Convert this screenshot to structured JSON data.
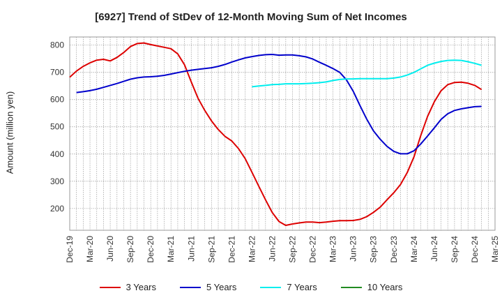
{
  "chart_data": {
    "type": "line",
    "title": "[6927]  Trend of StDev of 12-Month Moving Sum of Net Incomes",
    "xlabel": "",
    "ylabel": "Amount (million yen)",
    "x_ticks": [
      "Dec-19",
      "Mar-20",
      "Jun-20",
      "Sep-20",
      "Dec-20",
      "Mar-21",
      "Jun-21",
      "Sep-21",
      "Dec-21",
      "Mar-22",
      "Jun-22",
      "Sep-22",
      "Dec-22",
      "Mar-23",
      "Jun-23",
      "Sep-23",
      "Dec-23",
      "Mar-24",
      "Jun-24",
      "Sep-24",
      "Dec-24",
      "Mar-25"
    ],
    "ylim": [
      120,
      830
    ],
    "y_ticks": [
      200,
      300,
      400,
      500,
      600,
      700,
      800
    ],
    "grid": true,
    "legend_position": "bottom",
    "series": [
      {
        "name": "3 Years",
        "color": "#dd0000",
        "points": [
          [
            "2019-12",
            682
          ],
          [
            "2020-01",
            705
          ],
          [
            "2020-02",
            722
          ],
          [
            "2020-03",
            735
          ],
          [
            "2020-04",
            745
          ],
          [
            "2020-05",
            748
          ],
          [
            "2020-06",
            742
          ],
          [
            "2020-07",
            755
          ],
          [
            "2020-08",
            773
          ],
          [
            "2020-09",
            795
          ],
          [
            "2020-10",
            806
          ],
          [
            "2020-11",
            808
          ],
          [
            "2020-12",
            802
          ],
          [
            "2021-01",
            797
          ],
          [
            "2021-02",
            792
          ],
          [
            "2021-03",
            787
          ],
          [
            "2021-04",
            768
          ],
          [
            "2021-05",
            728
          ],
          [
            "2021-06",
            665
          ],
          [
            "2021-07",
            605
          ],
          [
            "2021-08",
            560
          ],
          [
            "2021-09",
            522
          ],
          [
            "2021-10",
            490
          ],
          [
            "2021-11",
            465
          ],
          [
            "2021-12",
            448
          ],
          [
            "2022-01",
            420
          ],
          [
            "2022-02",
            383
          ],
          [
            "2022-03",
            333
          ],
          [
            "2022-04",
            282
          ],
          [
            "2022-05",
            232
          ],
          [
            "2022-06",
            185
          ],
          [
            "2022-07",
            152
          ],
          [
            "2022-08",
            138
          ],
          [
            "2022-09",
            143
          ],
          [
            "2022-10",
            147
          ],
          [
            "2022-11",
            150
          ],
          [
            "2022-12",
            150
          ],
          [
            "2023-01",
            148
          ],
          [
            "2023-02",
            150
          ],
          [
            "2023-03",
            153
          ],
          [
            "2023-04",
            155
          ],
          [
            "2023-05",
            155
          ],
          [
            "2023-06",
            156
          ],
          [
            "2023-07",
            160
          ],
          [
            "2023-08",
            170
          ],
          [
            "2023-09",
            186
          ],
          [
            "2023-10",
            205
          ],
          [
            "2023-11",
            232
          ],
          [
            "2023-12",
            258
          ],
          [
            "2024-01",
            288
          ],
          [
            "2024-02",
            332
          ],
          [
            "2024-03",
            390
          ],
          [
            "2024-04",
            468
          ],
          [
            "2024-05",
            538
          ],
          [
            "2024-06",
            592
          ],
          [
            "2024-07",
            632
          ],
          [
            "2024-08",
            655
          ],
          [
            "2024-09",
            663
          ],
          [
            "2024-10",
            664
          ],
          [
            "2024-11",
            660
          ],
          [
            "2024-12",
            652
          ],
          [
            "2025-01",
            637
          ]
        ]
      },
      {
        "name": "5 Years",
        "color": "#0000cc",
        "points": [
          [
            "2020-01",
            626
          ],
          [
            "2020-02",
            629
          ],
          [
            "2020-03",
            633
          ],
          [
            "2020-04",
            638
          ],
          [
            "2020-05",
            645
          ],
          [
            "2020-06",
            652
          ],
          [
            "2020-07",
            659
          ],
          [
            "2020-08",
            667
          ],
          [
            "2020-09",
            675
          ],
          [
            "2020-10",
            680
          ],
          [
            "2020-11",
            683
          ],
          [
            "2020-12",
            684
          ],
          [
            "2021-01",
            686
          ],
          [
            "2021-02",
            689
          ],
          [
            "2021-03",
            694
          ],
          [
            "2021-04",
            699
          ],
          [
            "2021-05",
            704
          ],
          [
            "2021-06",
            708
          ],
          [
            "2021-07",
            711
          ],
          [
            "2021-08",
            714
          ],
          [
            "2021-09",
            717
          ],
          [
            "2021-10",
            722
          ],
          [
            "2021-11",
            729
          ],
          [
            "2021-12",
            738
          ],
          [
            "2022-01",
            746
          ],
          [
            "2022-02",
            753
          ],
          [
            "2022-03",
            758
          ],
          [
            "2022-04",
            762
          ],
          [
            "2022-05",
            765
          ],
          [
            "2022-06",
            766
          ],
          [
            "2022-07",
            763
          ],
          [
            "2022-08",
            764
          ],
          [
            "2022-09",
            764
          ],
          [
            "2022-10",
            761
          ],
          [
            "2022-11",
            757
          ],
          [
            "2022-12",
            749
          ],
          [
            "2023-01",
            737
          ],
          [
            "2023-02",
            726
          ],
          [
            "2023-03",
            714
          ],
          [
            "2023-04",
            700
          ],
          [
            "2023-05",
            672
          ],
          [
            "2023-06",
            630
          ],
          [
            "2023-07",
            578
          ],
          [
            "2023-08",
            528
          ],
          [
            "2023-09",
            485
          ],
          [
            "2023-10",
            454
          ],
          [
            "2023-11",
            428
          ],
          [
            "2023-12",
            410
          ],
          [
            "2024-01",
            401
          ],
          [
            "2024-02",
            401
          ],
          [
            "2024-03",
            412
          ],
          [
            "2024-04",
            437
          ],
          [
            "2024-05",
            466
          ],
          [
            "2024-06",
            496
          ],
          [
            "2024-07",
            527
          ],
          [
            "2024-08",
            548
          ],
          [
            "2024-09",
            560
          ],
          [
            "2024-10",
            566
          ],
          [
            "2024-11",
            570
          ],
          [
            "2024-12",
            574
          ],
          [
            "2025-01",
            575
          ]
        ]
      },
      {
        "name": "7 Years",
        "color": "#00eeee",
        "points": [
          [
            "2022-03",
            647
          ],
          [
            "2022-04",
            650
          ],
          [
            "2022-05",
            652
          ],
          [
            "2022-06",
            655
          ],
          [
            "2022-07",
            656
          ],
          [
            "2022-08",
            658
          ],
          [
            "2022-09",
            658
          ],
          [
            "2022-10",
            658
          ],
          [
            "2022-11",
            659
          ],
          [
            "2022-12",
            660
          ],
          [
            "2023-01",
            662
          ],
          [
            "2023-02",
            665
          ],
          [
            "2023-03",
            670
          ],
          [
            "2023-04",
            674
          ],
          [
            "2023-05",
            676
          ],
          [
            "2023-06",
            676
          ],
          [
            "2023-07",
            677
          ],
          [
            "2023-08",
            677
          ],
          [
            "2023-09",
            677
          ],
          [
            "2023-10",
            677
          ],
          [
            "2023-11",
            677
          ],
          [
            "2023-12",
            679
          ],
          [
            "2024-01",
            683
          ],
          [
            "2024-02",
            690
          ],
          [
            "2024-03",
            700
          ],
          [
            "2024-04",
            713
          ],
          [
            "2024-05",
            726
          ],
          [
            "2024-06",
            734
          ],
          [
            "2024-07",
            740
          ],
          [
            "2024-08",
            744
          ],
          [
            "2024-09",
            745
          ],
          [
            "2024-10",
            744
          ],
          [
            "2024-11",
            739
          ],
          [
            "2024-12",
            733
          ],
          [
            "2025-01",
            726
          ]
        ]
      },
      {
        "name": "10 Years",
        "color": "#228b22",
        "points": []
      }
    ]
  }
}
